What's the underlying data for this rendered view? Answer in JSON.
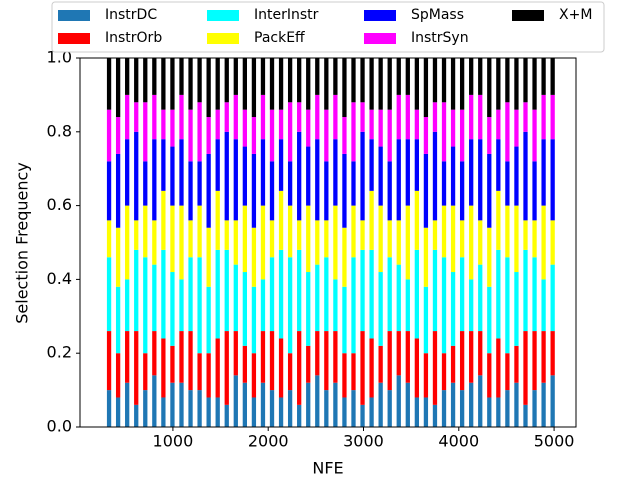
{
  "chart_data": {
    "type": "bar",
    "stacked": true,
    "x_label": "NFE",
    "y_label": "Selection Frequency",
    "x": [
      330,
      425,
      520,
      615,
      710,
      805,
      900,
      995,
      1090,
      1185,
      1280,
      1375,
      1470,
      1565,
      1660,
      1755,
      1850,
      1945,
      2040,
      2135,
      2230,
      2325,
      2420,
      2515,
      2610,
      2705,
      2800,
      2895,
      2990,
      3085,
      3180,
      3275,
      3370,
      3465,
      3560,
      3655,
      3750,
      3845,
      3940,
      4035,
      4130,
      4225,
      4320,
      4415,
      4510,
      4605,
      4700,
      4795,
      4890,
      4985
    ],
    "series": [
      {
        "name": "InstrDC",
        "color": "#1f77b4",
        "values": [
          0.1,
          0.08,
          0.12,
          0.06,
          0.1,
          0.14,
          0.08,
          0.12,
          0.12,
          0.1,
          0.1,
          0.08,
          0.08,
          0.06,
          0.14,
          0.12,
          0.08,
          0.12,
          0.1,
          0.08,
          0.1,
          0.06,
          0.12,
          0.14,
          0.1,
          0.12,
          0.08,
          0.1,
          0.06,
          0.08,
          0.12,
          0.1,
          0.14,
          0.12,
          0.08,
          0.08,
          0.06,
          0.1,
          0.12,
          0.1,
          0.12,
          0.14,
          0.08,
          0.08,
          0.1,
          0.12,
          0.06,
          0.1,
          0.12,
          0.14
        ]
      },
      {
        "name": "InstrOrb",
        "color": "#ff0000",
        "values": [
          0.16,
          0.12,
          0.14,
          0.2,
          0.1,
          0.12,
          0.16,
          0.1,
          0.14,
          0.16,
          0.1,
          0.12,
          0.16,
          0.2,
          0.12,
          0.1,
          0.12,
          0.14,
          0.16,
          0.16,
          0.1,
          0.2,
          0.1,
          0.12,
          0.16,
          0.14,
          0.12,
          0.1,
          0.2,
          0.16,
          0.1,
          0.16,
          0.12,
          0.14,
          0.16,
          0.12,
          0.2,
          0.1,
          0.1,
          0.16,
          0.14,
          0.12,
          0.12,
          0.16,
          0.1,
          0.1,
          0.2,
          0.16,
          0.14,
          0.12
        ]
      },
      {
        "name": "InterInstr",
        "color": "#00ffff",
        "values": [
          0.2,
          0.18,
          0.14,
          0.22,
          0.26,
          0.18,
          0.24,
          0.2,
          0.14,
          0.2,
          0.26,
          0.18,
          0.24,
          0.22,
          0.18,
          0.2,
          0.18,
          0.14,
          0.2,
          0.24,
          0.26,
          0.22,
          0.2,
          0.18,
          0.2,
          0.14,
          0.18,
          0.26,
          0.22,
          0.24,
          0.2,
          0.2,
          0.18,
          0.14,
          0.24,
          0.18,
          0.22,
          0.26,
          0.2,
          0.2,
          0.14,
          0.18,
          0.18,
          0.24,
          0.26,
          0.2,
          0.22,
          0.2,
          0.14,
          0.18
        ]
      },
      {
        "name": "PackEff",
        "color": "#ffff00",
        "values": [
          0.1,
          0.16,
          0.2,
          0.08,
          0.14,
          0.12,
          0.16,
          0.18,
          0.2,
          0.1,
          0.14,
          0.16,
          0.16,
          0.08,
          0.12,
          0.18,
          0.16,
          0.2,
          0.1,
          0.16,
          0.14,
          0.08,
          0.18,
          0.12,
          0.1,
          0.2,
          0.16,
          0.14,
          0.08,
          0.16,
          0.18,
          0.1,
          0.12,
          0.2,
          0.16,
          0.16,
          0.08,
          0.14,
          0.18,
          0.1,
          0.2,
          0.12,
          0.16,
          0.16,
          0.14,
          0.18,
          0.08,
          0.1,
          0.2,
          0.12
        ]
      },
      {
        "name": "SpMass",
        "color": "#0000ff",
        "values": [
          0.16,
          0.2,
          0.18,
          0.24,
          0.12,
          0.22,
          0.14,
          0.16,
          0.18,
          0.16,
          0.12,
          0.2,
          0.14,
          0.24,
          0.22,
          0.16,
          0.2,
          0.18,
          0.16,
          0.14,
          0.12,
          0.24,
          0.16,
          0.22,
          0.16,
          0.18,
          0.2,
          0.12,
          0.24,
          0.14,
          0.16,
          0.16,
          0.22,
          0.18,
          0.14,
          0.2,
          0.24,
          0.12,
          0.16,
          0.16,
          0.18,
          0.22,
          0.2,
          0.14,
          0.12,
          0.16,
          0.24,
          0.16,
          0.18,
          0.22
        ]
      },
      {
        "name": "InstrSyn",
        "color": "#ff00ff",
        "values": [
          0.14,
          0.1,
          0.12,
          0.08,
          0.16,
          0.12,
          0.08,
          0.1,
          0.12,
          0.14,
          0.16,
          0.1,
          0.08,
          0.08,
          0.12,
          0.1,
          0.1,
          0.12,
          0.14,
          0.08,
          0.16,
          0.08,
          0.1,
          0.12,
          0.14,
          0.12,
          0.1,
          0.16,
          0.08,
          0.08,
          0.1,
          0.14,
          0.12,
          0.12,
          0.08,
          0.1,
          0.08,
          0.16,
          0.1,
          0.14,
          0.12,
          0.12,
          0.1,
          0.08,
          0.16,
          0.1,
          0.08,
          0.14,
          0.12,
          0.12
        ]
      },
      {
        "name": "X+M",
        "color": "#000000",
        "values": [
          0.14,
          0.16,
          0.1,
          0.12,
          0.12,
          0.1,
          0.14,
          0.14,
          0.1,
          0.14,
          0.12,
          0.16,
          0.14,
          0.12,
          0.1,
          0.14,
          0.16,
          0.1,
          0.14,
          0.14,
          0.12,
          0.12,
          0.14,
          0.1,
          0.14,
          0.1,
          0.16,
          0.12,
          0.12,
          0.14,
          0.14,
          0.14,
          0.1,
          0.1,
          0.14,
          0.16,
          0.12,
          0.12,
          0.14,
          0.14,
          0.1,
          0.1,
          0.16,
          0.14,
          0.12,
          0.14,
          0.12,
          0.14,
          0.1,
          0.1
        ]
      }
    ],
    "xlim": [
      25,
      5230
    ],
    "xticks": [
      1000,
      2000,
      3000,
      4000,
      5000
    ],
    "ylim": [
      0,
      1
    ],
    "yticks": [
      {
        "value": 0,
        "label": "0.0"
      },
      0.2,
      0.4,
      0.6,
      0.8,
      {
        "value": 1,
        "label": "1.0"
      }
    ],
    "legend": "top"
  }
}
